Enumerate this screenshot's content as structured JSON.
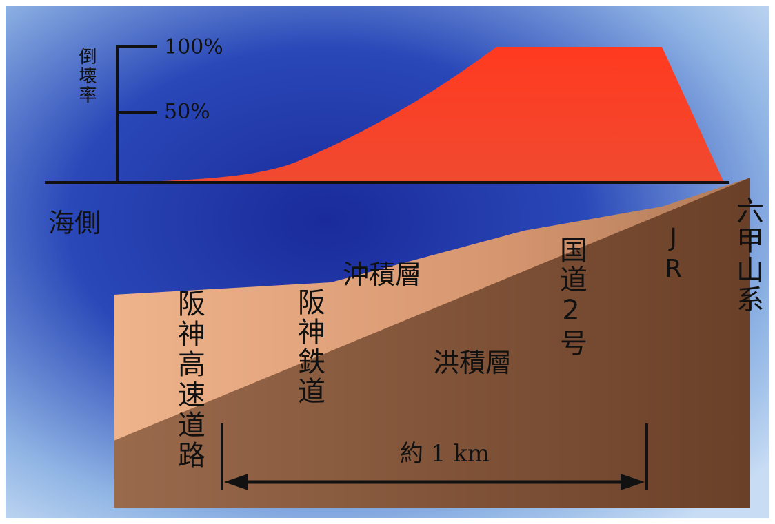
{
  "axis": {
    "label": "倒壊率",
    "ticks": [
      "100%",
      "50%"
    ]
  },
  "labels": {
    "sea_side": "海側",
    "alluvium": "沖積層",
    "diluvium": "洪積層",
    "hanshin_expressway": "阪神高速道路",
    "hanshin_railway": "阪神鉄道",
    "route2": "国道2号",
    "jr": "JR",
    "rokko": "六甲山系"
  },
  "scale": "約 1 km"
}
